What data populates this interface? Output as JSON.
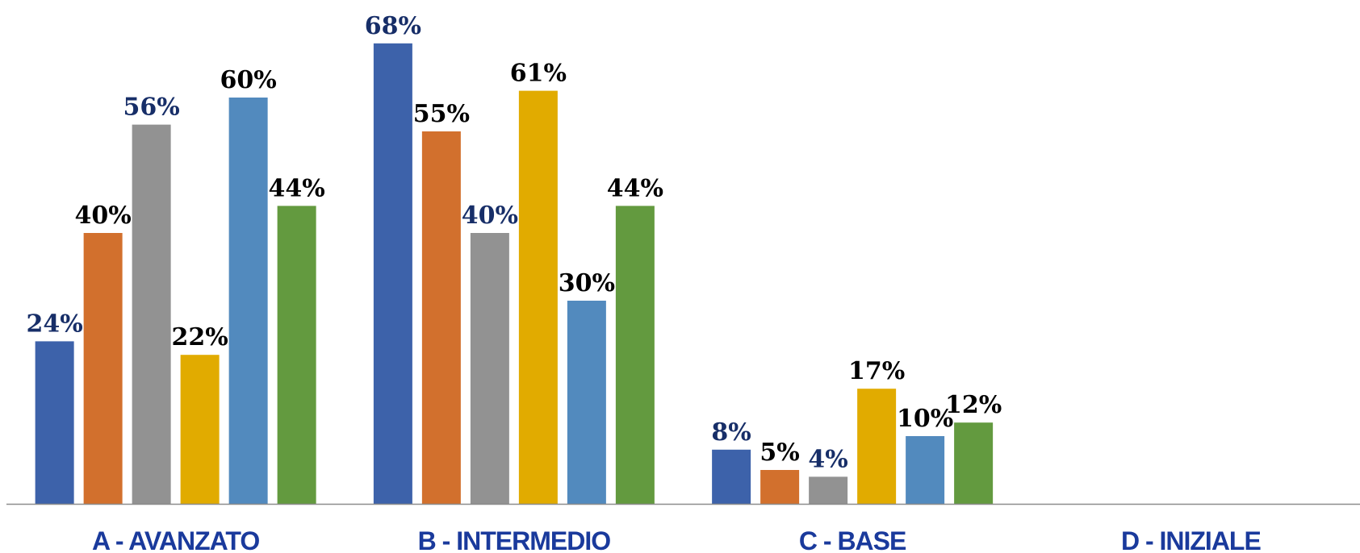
{
  "chart_data": {
    "type": "bar",
    "categories": [
      "A - AVANZATO",
      "B - INTERMEDIO",
      "C - BASE",
      "D - INIZIALE"
    ],
    "ylim": [
      0,
      70
    ],
    "grid": false,
    "legend": "none",
    "series": [
      {
        "values": [
          24,
          68,
          8,
          null
        ],
        "labels": [
          "24%",
          "68%",
          "8%",
          ""
        ],
        "color": "#3d62aa",
        "label_color": "#172e68"
      },
      {
        "values": [
          40,
          55,
          5,
          null
        ],
        "labels": [
          "40%",
          "55%",
          "5%",
          ""
        ],
        "color": "#d2702d",
        "label_color": "#000000"
      },
      {
        "values": [
          56,
          40,
          4,
          null
        ],
        "labels": [
          "56%",
          "40%",
          "4%",
          ""
        ],
        "color": "#929292",
        "label_color": "#172e68"
      },
      {
        "values": [
          22,
          61,
          17,
          null
        ],
        "labels": [
          "22%",
          "61%",
          "17%",
          ""
        ],
        "color": "#e1ab00",
        "label_color": "#000000"
      },
      {
        "values": [
          60,
          30,
          10,
          null
        ],
        "labels": [
          "60%",
          "30%",
          "10%",
          ""
        ],
        "color": "#528abe",
        "label_color": "#000000"
      },
      {
        "values": [
          44,
          44,
          12,
          null
        ],
        "labels": [
          "44%",
          "44%",
          "12%",
          ""
        ],
        "color": "#639a3f",
        "label_color": "#000000"
      }
    ],
    "category_label_color": "#1a3a9c",
    "axis_color": "#8c8c8c"
  }
}
